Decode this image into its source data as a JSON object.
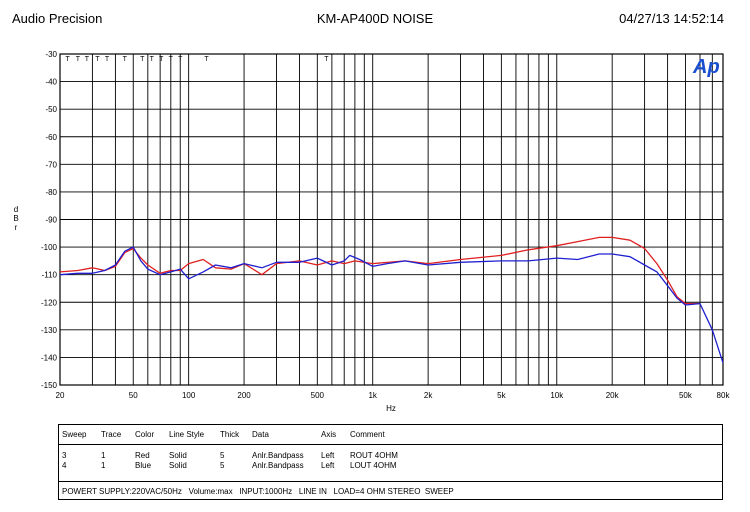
{
  "header": {
    "left": "Audio Precision",
    "center": "KM-AP400D NOISE",
    "right": "04/27/13 14:52:14"
  },
  "logo_text": "Ap",
  "chart_data": {
    "type": "line",
    "title": "KM-AP400D NOISE",
    "xlabel": "Hz",
    "ylabel": "dBr",
    "xscale": "log",
    "xlim": [
      20,
      80000
    ],
    "ylim": [
      -150,
      -30
    ],
    "grid": true,
    "x_ticks": [
      {
        "v": 20,
        "label": "20"
      },
      {
        "v": 50,
        "label": "50"
      },
      {
        "v": 100,
        "label": "100"
      },
      {
        "v": 200,
        "label": "200"
      },
      {
        "v": 500,
        "label": "500"
      },
      {
        "v": 1000,
        "label": "1k"
      },
      {
        "v": 2000,
        "label": "2k"
      },
      {
        "v": 5000,
        "label": "5k"
      },
      {
        "v": 10000,
        "label": "10k"
      },
      {
        "v": 20000,
        "label": "20k"
      },
      {
        "v": 50000,
        "label": "50k"
      },
      {
        "v": 80000,
        "label": "80k"
      }
    ],
    "y_ticks": [
      -30,
      -40,
      -50,
      -60,
      -70,
      -80,
      -90,
      -100,
      -110,
      -120,
      -130,
      -140,
      -150
    ],
    "t_markers": [
      22,
      25,
      28,
      32,
      36,
      45,
      56,
      63,
      71,
      80,
      90,
      125,
      560
    ],
    "series": [
      {
        "color": "#e02020",
        "points": [
          [
            20,
            -109
          ],
          [
            25,
            -108.5
          ],
          [
            30,
            -107.5
          ],
          [
            35,
            -108.5
          ],
          [
            40,
            -107
          ],
          [
            45,
            -102
          ],
          [
            50,
            -100.5
          ],
          [
            55,
            -104
          ],
          [
            60,
            -106.5
          ],
          [
            70,
            -109.5
          ],
          [
            80,
            -108.5
          ],
          [
            90,
            -108.5
          ],
          [
            100,
            -106
          ],
          [
            120,
            -104.5
          ],
          [
            140,
            -107.5
          ],
          [
            170,
            -108
          ],
          [
            200,
            -106
          ],
          [
            250,
            -110
          ],
          [
            300,
            -106
          ],
          [
            400,
            -105
          ],
          [
            500,
            -106.5
          ],
          [
            600,
            -105
          ],
          [
            700,
            -106
          ],
          [
            800,
            -105
          ],
          [
            1000,
            -106
          ],
          [
            1500,
            -105
          ],
          [
            2000,
            -106
          ],
          [
            3000,
            -104.5
          ],
          [
            5000,
            -103
          ],
          [
            7000,
            -101
          ],
          [
            10000,
            -99.5
          ],
          [
            13000,
            -98
          ],
          [
            17000,
            -96.5
          ],
          [
            20000,
            -96.5
          ],
          [
            25000,
            -97.5
          ],
          [
            30000,
            -100.5
          ],
          [
            35000,
            -106
          ],
          [
            40000,
            -112
          ],
          [
            45000,
            -118
          ],
          [
            50000,
            -120.5
          ],
          [
            60000,
            -120.5
          ]
        ]
      },
      {
        "color": "#2020d0",
        "points": [
          [
            20,
            -110
          ],
          [
            25,
            -109.5
          ],
          [
            30,
            -109.5
          ],
          [
            35,
            -108.5
          ],
          [
            40,
            -106.5
          ],
          [
            45,
            -101.5
          ],
          [
            50,
            -100
          ],
          [
            55,
            -105
          ],
          [
            60,
            -108
          ],
          [
            70,
            -110
          ],
          [
            80,
            -109
          ],
          [
            90,
            -108
          ],
          [
            100,
            -111.5
          ],
          [
            120,
            -109
          ],
          [
            140,
            -106.5
          ],
          [
            170,
            -107.5
          ],
          [
            200,
            -106
          ],
          [
            250,
            -107.5
          ],
          [
            300,
            -105.5
          ],
          [
            400,
            -105.5
          ],
          [
            500,
            -104
          ],
          [
            600,
            -106.5
          ],
          [
            700,
            -105
          ],
          [
            750,
            -103
          ],
          [
            850,
            -104.5
          ],
          [
            1000,
            -107
          ],
          [
            1200,
            -106
          ],
          [
            1500,
            -105
          ],
          [
            2000,
            -106.5
          ],
          [
            3000,
            -105.5
          ],
          [
            5000,
            -105
          ],
          [
            7000,
            -105
          ],
          [
            10000,
            -104
          ],
          [
            13000,
            -104.5
          ],
          [
            17000,
            -102.5
          ],
          [
            20000,
            -102.5
          ],
          [
            25000,
            -103.5
          ],
          [
            30000,
            -106.5
          ],
          [
            35000,
            -109
          ],
          [
            40000,
            -114
          ],
          [
            45000,
            -118.5
          ],
          [
            50000,
            -121
          ],
          [
            60000,
            -120.5
          ],
          [
            70000,
            -130
          ],
          [
            80000,
            -142
          ]
        ]
      }
    ]
  },
  "legend": {
    "headers": [
      "Sweep",
      "Trace",
      "Color",
      "Line Style",
      "Thick",
      "Data",
      "Axis",
      "Comment"
    ],
    "rows": [
      [
        "3",
        "1",
        "Red",
        "Solid",
        "5",
        "Anlr.Bandpass",
        "Left",
        "ROUT  4OHM"
      ],
      [
        "4",
        "1",
        "Blue",
        "Solid",
        "5",
        "Anlr.Bandpass",
        "Left",
        "LOUT  4OHM"
      ]
    ],
    "footer": "POWERT SUPPLY:220VAC/50Hz   Volume:max   INPUT:1000Hz   LINE IN   LOAD=4 OHM STEREO  SWEEP"
  }
}
